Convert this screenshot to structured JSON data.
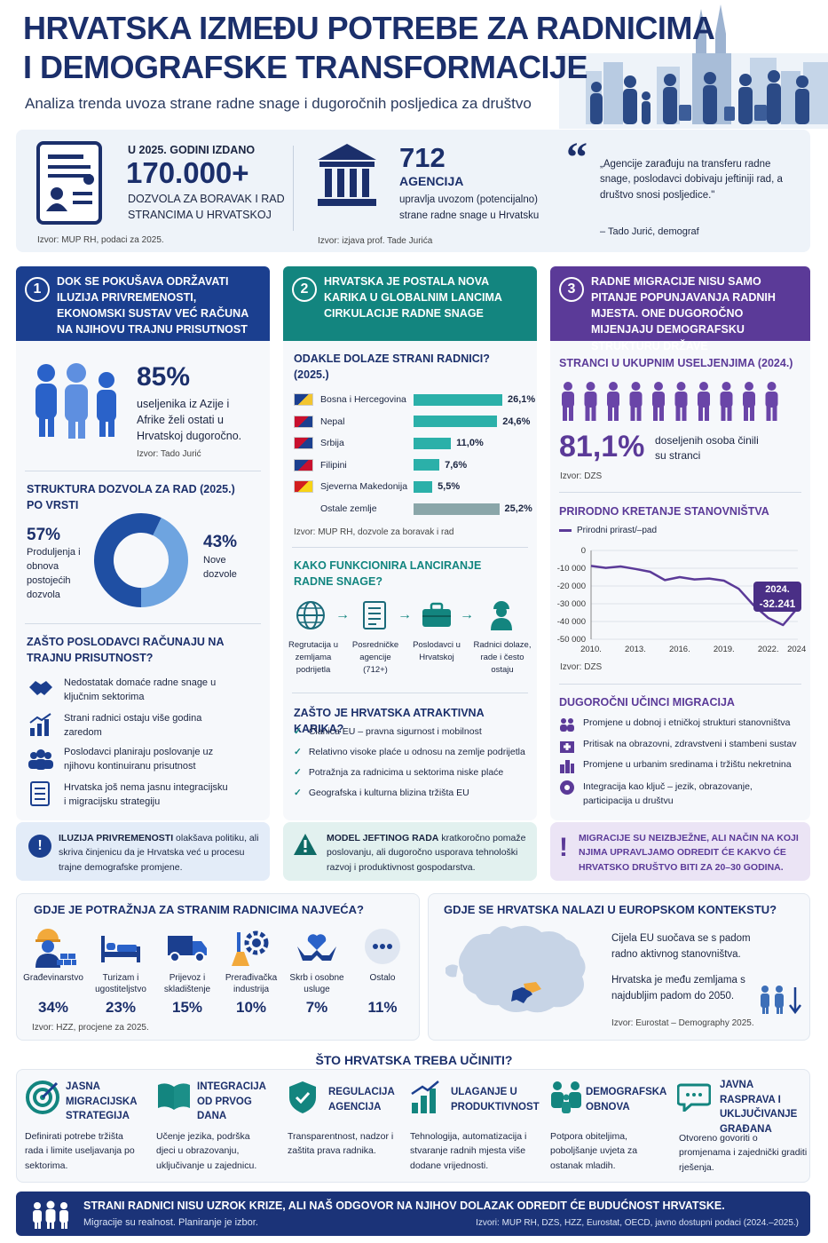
{
  "header": {
    "title_line1": "HRVATSKA IZMEĐU POTREBE ZA RADNICIMA",
    "title_line2": "I DEMOGRAFSKE TRANSFORMACIJE",
    "subtitle": "Analiza trenda uvoza strane radne snage i dugoročnih posljedica za društvo"
  },
  "stats": {
    "permits": {
      "pre": "U 2025. GODINI IZDANO",
      "value": "170.000+",
      "desc1": "DOZVOLA ZA BORAVAK I RAD",
      "desc2": "STRANCIMA U HRVATSKOJ",
      "source": "Izvor: MUP RH, podaci za 2025."
    },
    "agencies": {
      "value": "712",
      "unit": "AGENCIJA",
      "desc1": "upravlja uvozom (potencijalno)",
      "desc2": "strane radne snage u Hrvatsku",
      "source": "Izvor: izjava prof. Tade Jurića"
    },
    "quote": {
      "text": "„Agencije zarađuju na transferu radne snage, poslodavci dobivaju jeftiniji rad, a društvo snosi posljedice.\"",
      "author": "– Tado Jurić, demograf"
    }
  },
  "col1": {
    "num": "1",
    "header": "DOK SE POKUŠAVA ODRŽAVATI ILUZIJA PRIVREMENOSTI, EKONOMSKI SUSTAV VEĆ RAČUNA NA NJIHOVU TRAJNU PRISUTNOST",
    "stat_value": "85%",
    "stat_text": "useljenika iz Azije i Afrike želi ostati u Hrvatskoj dugoročno.",
    "stat_source": "Izvor: Tado Jurić",
    "donut_title": "STRUKTURA DOZVOLA ZA RAD (2025.) PO VRSTI",
    "donut_left_value": "57%",
    "donut_left_label": "Produljenja i obnova postojećih dozvola",
    "donut_right_value": "43%",
    "donut_right_label": "Nove dozvole",
    "why_title": "ZAŠTO POSLODAVCI RAČUNAJU NA TRAJNU PRISUTNOST?",
    "why_items": [
      "Nedostatak domaće radne snage u ključnim sektorima",
      "Strani radnici ostaju više godina zaredom",
      "Poslodavci planiraju poslovanje uz njihovu kontinuiranu prisutnost",
      "Hrvatska još nema jasnu integracijsku i migracijsku strategiju"
    ],
    "note_bold": "ILUZIJA PRIVREMENOSTI",
    "note_text": " olakšava politiku, ali skriva činjenicu da je Hrvatska već u procesu trajne demografske promjene."
  },
  "col2": {
    "num": "2",
    "header": "HRVATSKA JE POSTALA NOVA KARIKA U GLOBALNIM LANCIMA CIRKULACIJE RADNE SNAGE",
    "origin_title": "ODAKLE DOLAZE STRANI RADNICI? (2025.)",
    "origin_source": "Izvor: MUP RH, dozvole za boravak i rad",
    "chain_title": "KAKO FUNKCIONIRA LANCIRANJE RADNE SNAGE?",
    "chain_steps": [
      "Regrutacija u zemljama podrijetla",
      "Posredničke agencije (712+)",
      "Poslodavci u Hrvatskoj",
      "Radnici dolaze, rade i često ostaju"
    ],
    "attract_title": "ZAŠTO JE HRVATSKA ATRAKTIVNA KARIKA?",
    "attract_items": [
      "Članica EU – pravna sigurnost i mobilnost",
      "Relativno visoke plaće u odnosu na zemlje podrijetla",
      "Potražnja za radnicima u sektorima niske plaće",
      "Geografska i kulturna blizina tržišta EU"
    ],
    "note_bold": "MODEL JEFTINOG RADA",
    "note_text": " kratkoročno pomaže poslovanju, ali dugoročno usporava tehnološki razvoj i produktivnost gospodarstva."
  },
  "col3": {
    "num": "3",
    "header": "RADNE MIGRACIJE NISU SAMO PITANJE POPUNJAVANJA RADNIH MJESTA. ONE DUGOROČNO MIJENJAJU DEMOGRAFSKU STRUKTURU DRŽAVE",
    "share_title": "STRANCI U UKUPNIM USELJENJIMA (2024.)",
    "share_value": "81,1%",
    "share_text": "doseljenih osoba činili su stranci",
    "share_source": "Izvor: DZS",
    "nat_title": "PRIRODNO KRETANJE STANOVNIŠTVA",
    "nat_source": "Izvor: DZS",
    "nat_callout_year": "2024.",
    "nat_callout_value": "-32.241",
    "effects_title": "DUGOROČNI UČINCI MIGRACIJA",
    "effects_items": [
      "Promjene u dobnoj i etničkoj strukturi stanovništva",
      "Pritisak na obrazovni, zdravstveni i stambeni sustav",
      "Promjene u urbanim sredinama i tržištu nekretnina",
      "Integracija kao ključ – jezik, obrazovanje, participacija u društvu"
    ],
    "note_text": "MIGRACIJE SU NEIZBJEŽNE, ALI NAČIN NA KOJI NJIMA UPRAVLJAMO ODREDIT ĆE KAKVO ĆE HRVATSKO DRUŠTVO BITI ZA 20–30 GODINA."
  },
  "demand": {
    "title": "GDJE JE POTRAŽNJA ZA STRANIM RADNICIMA NAJVEĆA?",
    "items": [
      {
        "label": "Građevinarstvo",
        "pct": "34%"
      },
      {
        "label": "Turizam i ugostiteljstvo",
        "pct": "23%"
      },
      {
        "label": "Prijevoz i skladištenje",
        "pct": "15%"
      },
      {
        "label": "Prerađivačka industrija",
        "pct": "10%"
      },
      {
        "label": "Skrb i osobne usluge",
        "pct": "7%"
      },
      {
        "label": "Ostalo",
        "pct": "11%"
      }
    ],
    "source": "Izvor: HZZ, procjene za 2025."
  },
  "europe": {
    "title": "GDJE SE HRVATSKA NALAZI U EUROPSKOM KONTEKSTU?",
    "text1": "Cijela EU suočava se s padom radno aktivnog stanovništva.",
    "text2": "Hrvatska je među zemljama s najdubljim padom do 2050.",
    "source": "Izvor: Eurostat – Demography 2025."
  },
  "actions": {
    "title": "ŠTO HRVATSKA TREBA UČINITI?",
    "items": [
      {
        "name": "JASNA MIGRACIJSKA STRATEGIJA",
        "text": "Definirati potrebe tržišta rada i limite useljavanja po sektorima."
      },
      {
        "name": "INTEGRACIJA OD PRVOG DANA",
        "text": "Učenje jezika, podrška djeci u obrazovanju, uključivanje u zajednicu."
      },
      {
        "name": "REGULACIJA AGENCIJA",
        "text": "Transparentnost, nadzor i zaštita prava radnika."
      },
      {
        "name": "ULAGANJE U PRODUKTIVNOST",
        "text": "Tehnologija, automatizacija i stvaranje radnih mjesta više dodane vrijednosti."
      },
      {
        "name": "DEMOGRAFSKA OBNOVA",
        "text": "Potpora obiteljima, poboljšanje uvjeta za ostanak mladih."
      },
      {
        "name": "JAVNA RASPRAVA I UKLJUČIVANJE GRAĐANA",
        "text": "Otvoreno govoriti o promjenama i zajednički graditi rješenja."
      }
    ]
  },
  "footer": {
    "main": "STRANI RADNICI NISU UZROK KRIZE, ALI NAŠ ODGOVOR NA NJIHOV DOLAZAK ODREDIT ĆE BUDUĆNOST HRVATSKE.",
    "sub": "Migracije su realnost. Planiranje je izbor.",
    "sources": "Izvori: MUP RH, DZS, HZZ, Eurostat, OECD, javno dostupni podaci (2024.–2025.)"
  },
  "chart_data": [
    {
      "type": "bar",
      "title": "ODAKLE DOLAZE STRANI RADNICI? (2025.)",
      "categories": [
        "Bosna i Hercegovina",
        "Nepal",
        "Srbija",
        "Filipini",
        "Sjeverna Makedonija",
        "Ostale zemlje"
      ],
      "values": [
        26.1,
        24.6,
        11.0,
        7.6,
        5.5,
        25.2
      ],
      "value_labels": [
        "26,1%",
        "24,6%",
        "11,0%",
        "7,6%",
        "5,5%",
        "25,2%"
      ],
      "colors": [
        "#2bb0a9",
        "#2bb0a9",
        "#2bb0a9",
        "#2bb0a9",
        "#2bb0a9",
        "#8aa6a9"
      ]
    },
    {
      "type": "pie",
      "title": "STRUKTURA DOZVOLA ZA RAD (2025.) PO VRSTI",
      "labels": [
        "Produljenja i obnova postojećih dozvola",
        "Nove dozvole"
      ],
      "values": [
        57,
        43
      ],
      "colors": [
        "#1f4fa3",
        "#6ea4e0"
      ]
    },
    {
      "type": "line",
      "title": "PRIRODNO KRETANJE STANOVNIŠTVA",
      "series": [
        {
          "name": "Prirodni prirast/–pad",
          "x": [
            2010,
            2011,
            2012,
            2013,
            2014,
            2015,
            2016,
            2017,
            2018,
            2019,
            2020,
            2021,
            2022,
            2023,
            2024
          ],
          "values": [
            -8700,
            -9800,
            -9000,
            -10400,
            -12000,
            -16700,
            -15000,
            -16300,
            -15800,
            -17000,
            -21600,
            -30800,
            -38000,
            -42000,
            -32241
          ]
        }
      ],
      "x_ticks": [
        "2010.",
        "2013.",
        "2016.",
        "2019.",
        "2022.",
        "2024."
      ],
      "y_ticks": [
        "0",
        "-10 000",
        "-20 000",
        "-30 000",
        "-40 000",
        "-50 000"
      ],
      "ylim": [
        -50000,
        0
      ],
      "line_color": "#5b3a98"
    }
  ]
}
